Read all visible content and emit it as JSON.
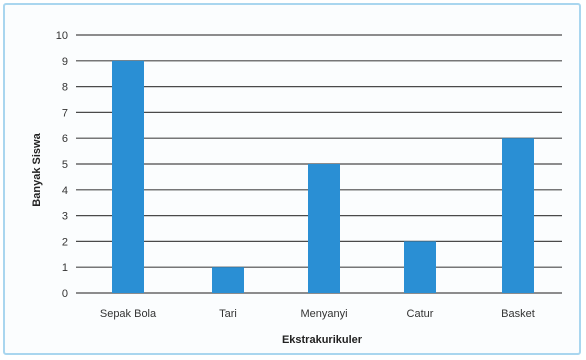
{
  "chart_data": {
    "type": "bar",
    "title": "",
    "xlabel": "Ekstrakurikuler",
    "ylabel": "Banyak Siswa",
    "categories": [
      "Sepak Bola",
      "Tari",
      "Menyanyi",
      "Catur",
      "Basket"
    ],
    "values": [
      9,
      1,
      5,
      2,
      6
    ],
    "ylim": [
      0,
      10
    ],
    "yticks": [
      "0",
      "1",
      "2",
      "3",
      "4",
      "5",
      "6",
      "7",
      "8",
      "9",
      "10"
    ],
    "grid": true,
    "legend": "none",
    "bar_color": "#2a8fd4",
    "grid_color": "#4a4a4a"
  }
}
